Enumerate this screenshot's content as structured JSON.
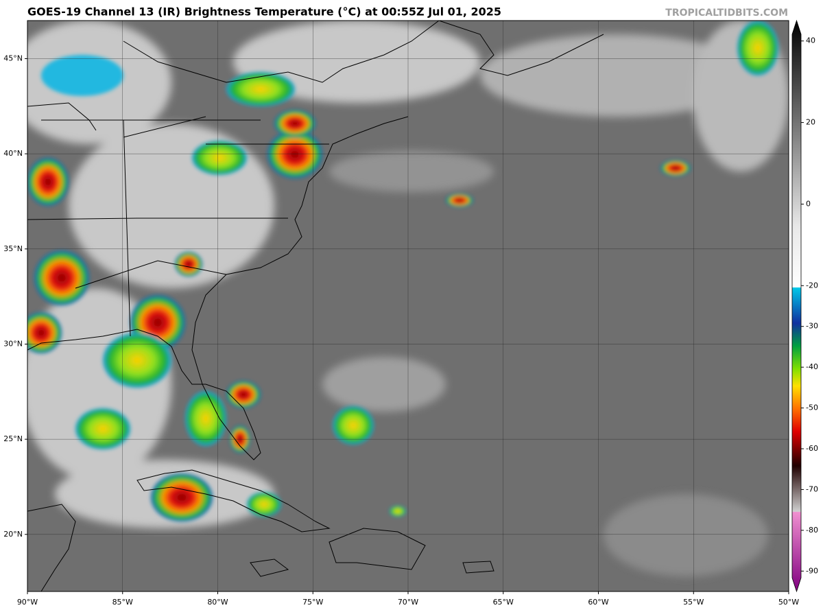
{
  "header": {
    "title": "GOES-19 Channel 13 (IR) Brightness Temperature (°C) at 00:55Z Jul 01, 2025",
    "watermark": "TROPICALTIDBITS.COM"
  },
  "map": {
    "lon_range": [
      -90,
      -50
    ],
    "lat_range": [
      17,
      47
    ],
    "lon_ticks": [
      {
        "value": -90,
        "label": "90°W"
      },
      {
        "value": -85,
        "label": "85°W"
      },
      {
        "value": -80,
        "label": "80°W"
      },
      {
        "value": -75,
        "label": "75°W"
      },
      {
        "value": -70,
        "label": "70°W"
      },
      {
        "value": -65,
        "label": "65°W"
      },
      {
        "value": -60,
        "label": "60°W"
      },
      {
        "value": -55,
        "label": "55°W"
      },
      {
        "value": -50,
        "label": "50°W"
      }
    ],
    "lat_ticks": [
      {
        "value": 20,
        "label": "20°N"
      },
      {
        "value": 25,
        "label": "25°N"
      },
      {
        "value": 30,
        "label": "30°N"
      },
      {
        "value": 35,
        "label": "35°N"
      },
      {
        "value": 40,
        "label": "40°N"
      },
      {
        "value": 45,
        "label": "45°N"
      }
    ]
  },
  "colorbar": {
    "range": [
      -95,
      45
    ],
    "ticks": [
      40,
      20,
      0,
      -20,
      -30,
      -40,
      -50,
      -60,
      -70,
      -80,
      -90
    ]
  }
}
